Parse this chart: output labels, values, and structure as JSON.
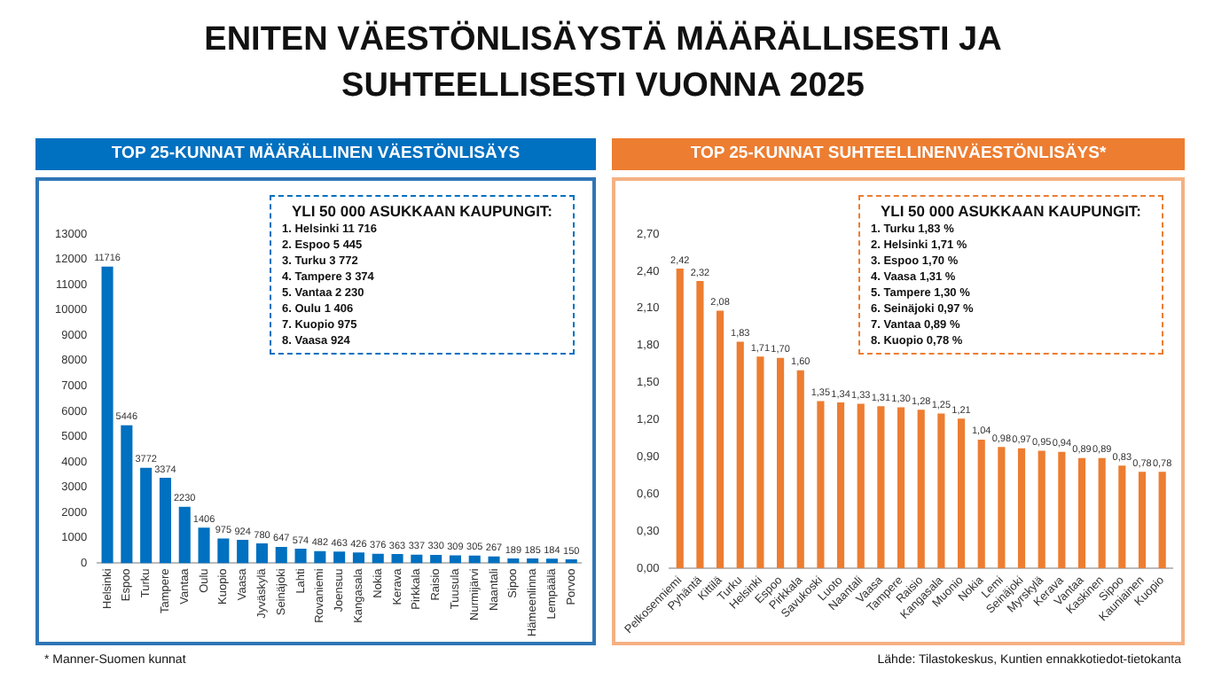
{
  "chart_data": [
    {
      "type": "bar",
      "title": "ENITEN VÄESTÖNLISÄYSTÄ MÄÄRÄLLISESTI JA SUHTEELLISESTI VUONNA 2025",
      "subtitle": "TOP 25-KUNNAT MÄÄRÄLLINEN VÄESTÖNLISÄYS",
      "categories": [
        "Helsinki",
        "Espoo",
        "Turku",
        "Tampere",
        "Vantaa",
        "Oulu",
        "Kuopio",
        "Vaasa",
        "Jyväskylä",
        "Seinäjoki",
        "Lahti",
        "Rovaniemi",
        "Joensuu",
        "Kangasala",
        "Nokia",
        "Kerava",
        "Pirkkala",
        "Raisio",
        "Tuusula",
        "Nurmijärvi",
        "Naantali",
        "Sipoo",
        "Hämeenlinna",
        "Lempäälä",
        "Porvoo"
      ],
      "values": [
        11716,
        5446,
        3772,
        3374,
        2230,
        1406,
        975,
        924,
        780,
        647,
        574,
        482,
        463,
        426,
        376,
        363,
        337,
        330,
        309,
        305,
        267,
        189,
        185,
        184,
        150
      ],
      "color": "#0070c0",
      "ylim": [
        0,
        13000
      ],
      "yticks": [
        0,
        1000,
        2000,
        3000,
        4000,
        5000,
        6000,
        7000,
        8000,
        9000,
        10000,
        11000,
        12000,
        13000
      ],
      "data_labels": true,
      "grid": false,
      "legend": false,
      "annotations": [
        "YLI 50 000 ASUKKAAN KAUPUNGIT:",
        "1. Helsinki 11 716",
        "2. Espoo 5 445",
        "3. Turku 3 772",
        "4. Tampere 3 374",
        "5. Vantaa 2 230",
        "6. Oulu 1 406",
        "7. Kuopio 975",
        "8. Vaasa 924"
      ]
    },
    {
      "type": "bar",
      "title": "TOP 25-KUNNAT SUHTEELLINENVÄESTÖNLISÄYS*",
      "categories": [
        "Pelkosenniemi",
        "Pyhäntä",
        "Kittilä",
        "Turku",
        "Helsinki",
        "Espoo",
        "Pirkkala",
        "Savukoski",
        "Luoto",
        "Naantali",
        "Vaasa",
        "Tampere",
        "Raisio",
        "Kangasala",
        "Muonio",
        "Nokia",
        "Lemi",
        "Seinäjoki",
        "Myrskylä",
        "Kerava",
        "Vantaa",
        "Kaskinen",
        "Sipoo",
        "Kauniainen",
        "Kuopio"
      ],
      "values": [
        2.42,
        2.32,
        2.08,
        1.83,
        1.71,
        1.7,
        1.6,
        1.35,
        1.34,
        1.33,
        1.31,
        1.3,
        1.28,
        1.25,
        1.21,
        1.04,
        0.98,
        0.97,
        0.95,
        0.94,
        0.89,
        0.89,
        0.83,
        0.78,
        0.78
      ],
      "value_labels": [
        "2,42",
        "2,32",
        "2,08",
        "1,83",
        "1,71",
        "1,70",
        "1,60",
        "1,35",
        "1,34",
        "1,33",
        "1,31",
        "1,30",
        "1,28",
        "1,25",
        "1,21",
        "1,04",
        "0,98",
        "0,97",
        "0,95",
        "0,94",
        "0,89",
        "0,89",
        "0,83",
        "0,78",
        "0,78"
      ],
      "color": "#ed7d31",
      "ylim": [
        0,
        2.7
      ],
      "yticks": [
        {
          "value": 0,
          "label": "0,00"
        },
        {
          "value": 0.3,
          "label": "0,30"
        },
        {
          "value": 0.6,
          "label": "0,60"
        },
        {
          "value": 0.9,
          "label": "0,90"
        },
        {
          "value": 1.2,
          "label": "1,20"
        },
        {
          "value": 1.5,
          "label": "1,50"
        },
        {
          "value": 1.8,
          "label": "1,80"
        },
        {
          "value": 2.1,
          "label": "2,10"
        },
        {
          "value": 2.4,
          "label": "2,40"
        },
        {
          "value": 2.7,
          "label": "2,70"
        }
      ],
      "grid": false,
      "legend": false,
      "annotations": [
        "YLI 50 000 ASUKKAAN KAUPUNGIT:",
        "1. Turku 1,83 %",
        "2. Helsinki 1,71 %",
        "3. Espoo 1,70 %",
        "4. Vaasa 1,31 %",
        "5. Tampere 1,30 %",
        "6. Seinäjoki 0,97 %",
        "7. Vantaa 0,89 %",
        "8. Kuopio 0,78 %",
        "* Manner-Suomen kunnat",
        "Lähde: Tilastokeskus, Kuntien ennakkotiedot-tietokanta"
      ]
    }
  ]
}
